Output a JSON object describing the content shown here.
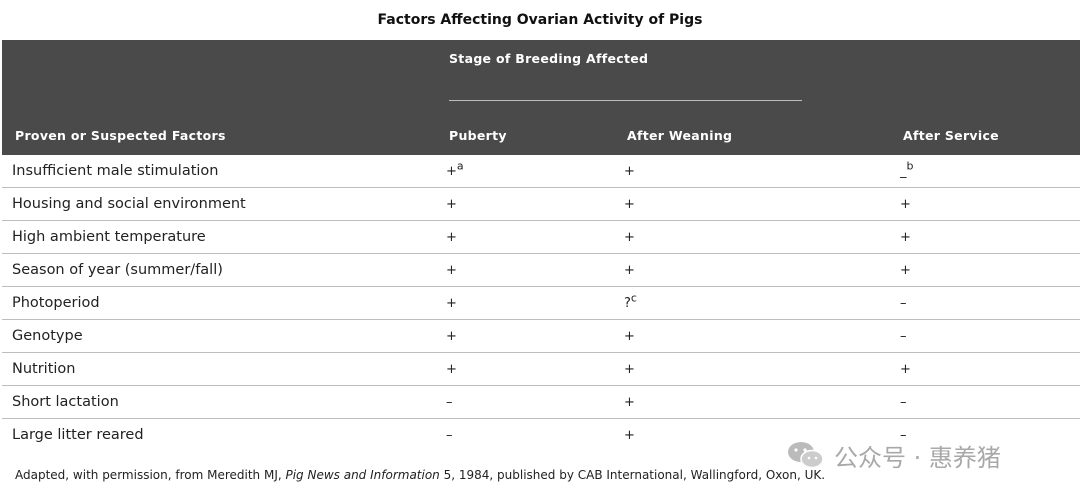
{
  "title": "Factors Affecting Ovarian Activity of Pigs",
  "stage_header": "Stage of Breeding Affected",
  "columns": {
    "factor": "Proven or Suspected Factors",
    "puberty": "Puberty",
    "after_weaning": "After Weaning",
    "after_service": "After Service"
  },
  "rows": [
    {
      "factor": "Insufficient male stimulation",
      "puberty": "+",
      "puberty_sup": "a",
      "after_weaning": "+",
      "after_weaning_sup": "",
      "after_service": "_",
      "after_service_sup": "b"
    },
    {
      "factor": "Housing and social environment",
      "puberty": "+",
      "puberty_sup": "",
      "after_weaning": "+",
      "after_weaning_sup": "",
      "after_service": "+",
      "after_service_sup": ""
    },
    {
      "factor": "High ambient temperature",
      "puberty": "+",
      "puberty_sup": "",
      "after_weaning": "+",
      "after_weaning_sup": "",
      "after_service": "+",
      "after_service_sup": ""
    },
    {
      "factor": "Season of year (summer/fall)",
      "puberty": "+",
      "puberty_sup": "",
      "after_weaning": "+",
      "after_weaning_sup": "",
      "after_service": "+",
      "after_service_sup": ""
    },
    {
      "factor": "Photoperiod",
      "puberty": "+",
      "puberty_sup": "",
      "after_weaning": "?",
      "after_weaning_sup": "c",
      "after_service": "–",
      "after_service_sup": ""
    },
    {
      "factor": "Genotype",
      "puberty": "+",
      "puberty_sup": "",
      "after_weaning": "+",
      "after_weaning_sup": "",
      "after_service": "–",
      "after_service_sup": ""
    },
    {
      "factor": "Nutrition",
      "puberty": "+",
      "puberty_sup": "",
      "after_weaning": "+",
      "after_weaning_sup": "",
      "after_service": "+",
      "after_service_sup": ""
    },
    {
      "factor": "Short lactation",
      "puberty": "–",
      "puberty_sup": "",
      "after_weaning": "+",
      "after_weaning_sup": "",
      "after_service": "–",
      "after_service_sup": ""
    },
    {
      "factor": "Large litter reared",
      "puberty": "–",
      "puberty_sup": "",
      "after_weaning": "+",
      "after_weaning_sup": "",
      "after_service": "–",
      "after_service_sup": ""
    }
  ],
  "footnote": {
    "prefix": "Adapted, with permission, from Meredith MJ, ",
    "journal": "Pig News and Information",
    "suffix": " 5, 1984, published by CAB International, Wallingford, Oxon, UK."
  },
  "watermark": {
    "icon": "wechat-icon",
    "text": "公众号 · 惠养猪"
  },
  "colors": {
    "header_bg": "#4a4a4a",
    "header_text": "#ffffff",
    "rule": "#bdbdbd",
    "text": "#222222"
  }
}
